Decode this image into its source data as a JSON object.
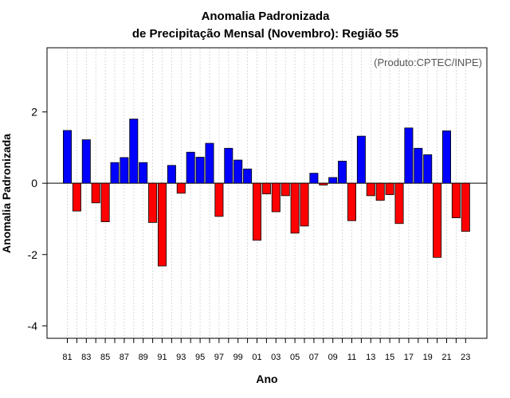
{
  "chart_data": {
    "type": "bar",
    "title": "Anomalia Padronizada",
    "subtitle": "de Precipitação Mensal (Novembro): Região 55",
    "xlabel": "Ano",
    "ylabel": "Anomalia Padronizada",
    "credit": "(Produto:CPTEC/INPE)",
    "ylim": [
      -4.35,
      3.8
    ],
    "yticks": [
      -4,
      -2,
      0,
      2
    ],
    "grid": "vertical dotted",
    "positive_color": "#0000ff",
    "negative_color": "#ff0000",
    "categories": [
      "81",
      "82",
      "83",
      "84",
      "85",
      "86",
      "87",
      "88",
      "89",
      "90",
      "91",
      "92",
      "93",
      "94",
      "95",
      "96",
      "97",
      "98",
      "99",
      "00",
      "01",
      "02",
      "03",
      "04",
      "05",
      "06",
      "07",
      "08",
      "09",
      "10",
      "11",
      "12",
      "13",
      "14",
      "15",
      "16",
      "17",
      "18",
      "19",
      "20",
      "21",
      "22",
      "23"
    ],
    "tick_labels": [
      "81",
      "83",
      "85",
      "87",
      "89",
      "91",
      "93",
      "95",
      "97",
      "99",
      "01",
      "03",
      "05",
      "07",
      "09",
      "11",
      "13",
      "15",
      "17",
      "19",
      "21",
      "23"
    ],
    "values": [
      1.48,
      -0.78,
      1.22,
      -0.55,
      -1.08,
      0.58,
      0.72,
      1.8,
      0.58,
      -1.1,
      -2.32,
      0.5,
      -0.28,
      0.87,
      0.73,
      1.12,
      -0.93,
      0.98,
      0.65,
      0.4,
      -1.6,
      -0.3,
      -0.8,
      -0.35,
      -1.4,
      -1.2,
      0.28,
      -0.05,
      0.16,
      0.62,
      -1.05,
      1.32,
      -0.35,
      -0.48,
      -0.32,
      -1.13,
      1.55,
      0.98,
      0.8,
      -2.08,
      1.47,
      -0.97,
      -1.35
    ]
  }
}
